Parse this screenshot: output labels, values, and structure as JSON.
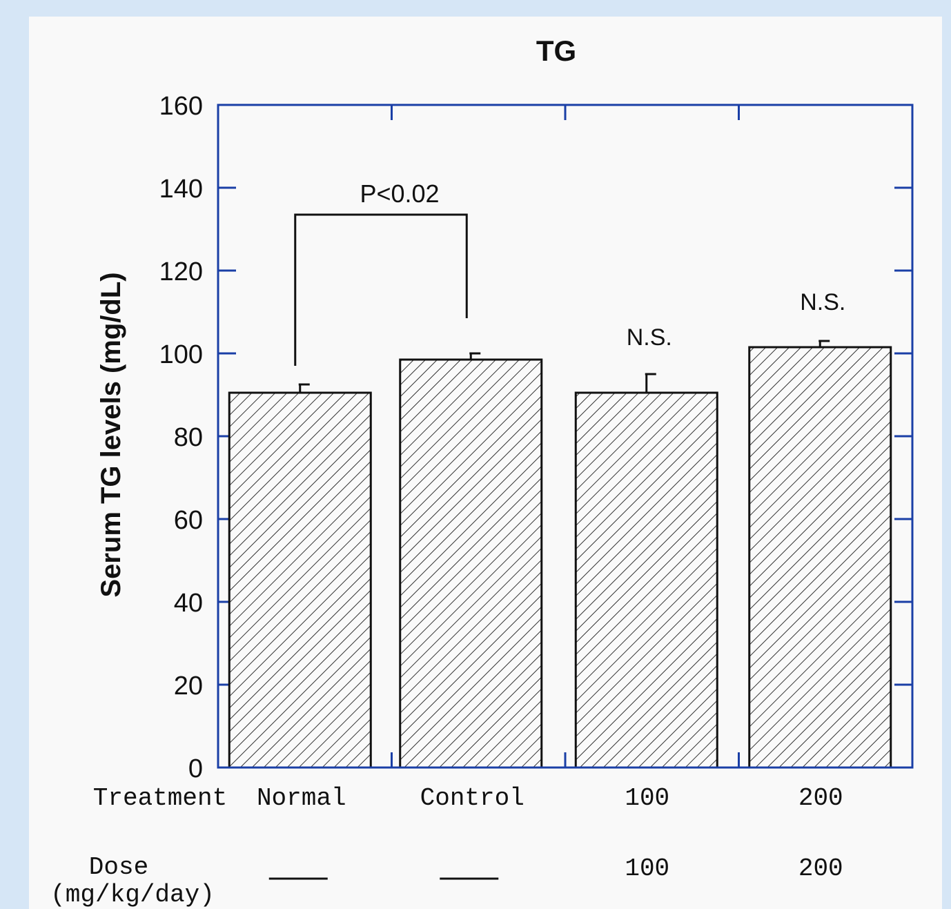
{
  "chart_data": {
    "type": "bar",
    "title": "TG",
    "ylabel": "Serum TG levels (mg/dL)",
    "xlabel": "",
    "ylim": [
      0,
      160
    ],
    "yticks": [
      0,
      20,
      40,
      60,
      80,
      100,
      120,
      140,
      160
    ],
    "categories": [
      "Normal",
      "Control",
      "100",
      "200"
    ],
    "values": [
      90.5,
      98.5,
      90.5,
      101.5
    ],
    "errors": [
      2.0,
      1.5,
      4.5,
      1.5
    ],
    "colors": {
      "axis": "#1a3fa6",
      "bar": "#111111",
      "hatch": "#333333"
    },
    "annotations": {
      "comparison": {
        "text": "P<0.02",
        "from": "Normal",
        "to": "Control"
      },
      "ns_labels": [
        "N.S.",
        "N.S."
      ]
    },
    "table": {
      "treatment_label": "Treatment",
      "dose_label_line1": "Dose",
      "dose_label_line2": "(mg/kg/day)",
      "treatment_values": [
        "Normal",
        "Control",
        "100",
        "200"
      ],
      "dose_values": [
        "—",
        "—",
        "100",
        "200"
      ]
    }
  }
}
